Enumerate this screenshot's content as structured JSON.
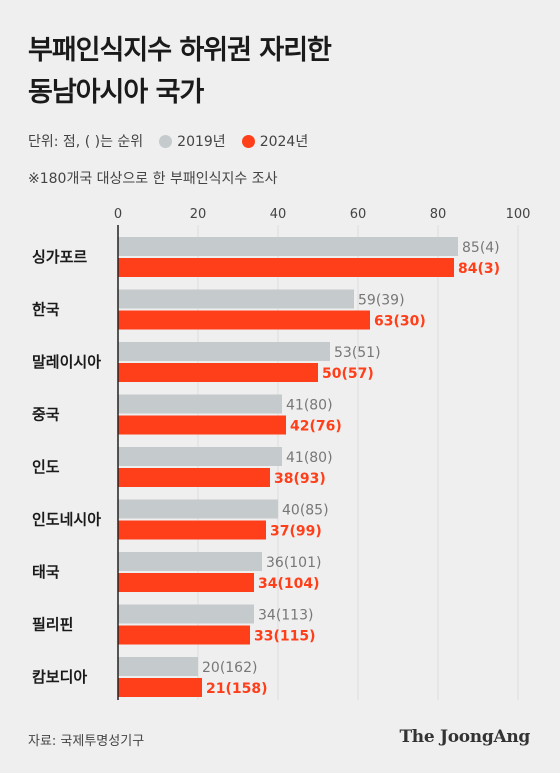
{
  "header": {
    "title_line1": "부패인식지수 하위권 자리한",
    "title_line2": "동남아시아 국가"
  },
  "legend": {
    "unit": "단위: 점, ( )는 순위",
    "series_2019": "2019년",
    "series_2024": "2024년"
  },
  "note": "※180개국 대상으로 한 부패인식지수 조사",
  "footer": {
    "source": "자료: 국제투명성기구",
    "brand": "The JoongAng"
  },
  "colors": {
    "series_2019": "#c5cacd",
    "series_2024": "#ff3e1a",
    "label_2019": "#777777",
    "label_2024": "#ff3e1a"
  },
  "chart_data": {
    "type": "bar",
    "orientation": "horizontal",
    "categories": [
      "싱가포르",
      "한국",
      "말레이시아",
      "중국",
      "인도",
      "인도네시아",
      "태국",
      "필리핀",
      "캄보디아"
    ],
    "series": [
      {
        "name": "2019년",
        "values": [
          85,
          59,
          53,
          41,
          41,
          40,
          36,
          34,
          20
        ],
        "labels": [
          "85(4)",
          "59(39)",
          "53(51)",
          "41(80)",
          "41(80)",
          "40(85)",
          "36(101)",
          "34(113)",
          "20(162)"
        ]
      },
      {
        "name": "2024년",
        "values": [
          84,
          63,
          50,
          42,
          38,
          37,
          34,
          33,
          21
        ],
        "labels": [
          "84(3)",
          "63(30)",
          "50(57)",
          "42(76)",
          "38(93)",
          "37(99)",
          "34(104)",
          "33(115)",
          "21(158)"
        ]
      }
    ],
    "xlim": [
      0,
      100
    ],
    "xticks": [
      0,
      20,
      40,
      60,
      80,
      100
    ],
    "grid": true,
    "legend": "top-left"
  }
}
